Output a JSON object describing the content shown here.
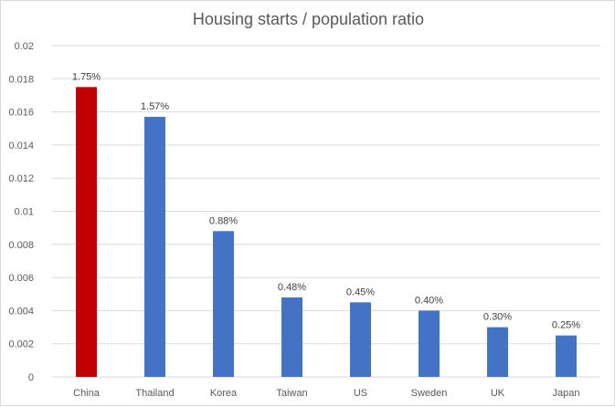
{
  "chart_data": {
    "type": "bar",
    "title": "Housing starts / population ratio",
    "categories": [
      "China",
      "Thailand",
      "Korea",
      "Taiwan",
      "US",
      "Sweden",
      "UK",
      "Japan"
    ],
    "values": [
      0.0175,
      0.0157,
      0.0088,
      0.0048,
      0.0045,
      0.004,
      0.003,
      0.0025
    ],
    "data_labels": [
      "1.75%",
      "1.57%",
      "0.88%",
      "0.48%",
      "0.45%",
      "0.40%",
      "0.30%",
      "0.25%"
    ],
    "y_ticks": [
      "0",
      "0.002",
      "0.004",
      "0.006",
      "0.008",
      "0.01",
      "0.012",
      "0.014",
      "0.016",
      "0.018",
      "0.02"
    ],
    "ylim": [
      0,
      0.02
    ],
    "grid": true,
    "legend": "none",
    "colors": {
      "highlight": "#c00000",
      "default": "#4472c4",
      "gridline": "#d9d9d9",
      "text": "#595959"
    },
    "highlight_index": 0
  }
}
